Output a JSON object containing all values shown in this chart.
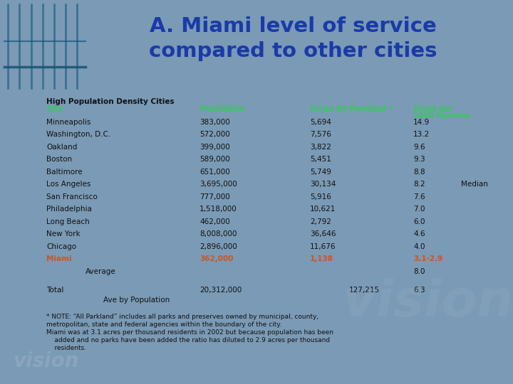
{
  "title_line1": "A. Miami level of service",
  "title_line2": "compared to other cities",
  "title_color": "#1a3aaa",
  "title_bg_color": "#8faabf",
  "header_subtitle": "High Population Density Cities",
  "table_bg_color": "#8faabf",
  "col_header_color": "#33cc55",
  "rows": [
    [
      "Minneapolis",
      "383,000",
      "5,694",
      "14.9"
    ],
    [
      "Washington, D.C.",
      "572,000",
      "7,576",
      "13.2"
    ],
    [
      "Oakland",
      "399,000",
      "3,822",
      "9.6"
    ],
    [
      "Boston",
      "589,000",
      "5,451",
      "9.3"
    ],
    [
      "Baltimore",
      "651,000",
      "5,749",
      "8.8"
    ],
    [
      "Los Angeles",
      "3,695,000",
      "30,134",
      "8.2"
    ],
    [
      "San Francisco",
      "777,000",
      "5,916",
      "7.6"
    ],
    [
      "Philadelphia",
      "1,518,000",
      "10,621",
      "7.0"
    ],
    [
      "Long Beach",
      "462,000",
      "2,792",
      "6.0"
    ],
    [
      "New York",
      "8,008,000",
      "36,646",
      "4.6"
    ],
    [
      "Chicago",
      "2,896,000",
      "11,676",
      "4.0"
    ],
    [
      "Miami",
      "362,000",
      "1,138",
      "3.1-2.9"
    ]
  ],
  "miami_color": "#cc5522",
  "median_row_idx": 5,
  "median_text": "Median",
  "average_label": "Average",
  "average_val": "8.0",
  "total_label": "Total",
  "total_pop": "20,312,000",
  "total_acres": "127,215",
  "total_val": "6.3",
  "ave_by_pop_label": "Ave by Population",
  "data_text_color": "#111111",
  "note_line1": "* NOTE: “All Parkland” includes all parks and preserves owned by municipal, county,",
  "note_line2": "metropolitan, state and federal agencies within the boundary of the city.",
  "note_line3": "Miami was at 3.1 acres per thousand residents in 2002 but because population has been",
  "note_line4": "    added and no parks have been added the ratio has diluted to 2.9 acres per thousand",
  "note_line5": "    residents.",
  "note_color": "#111111",
  "image_bg_color": "#7a9ab5",
  "footer_logo": "vision"
}
